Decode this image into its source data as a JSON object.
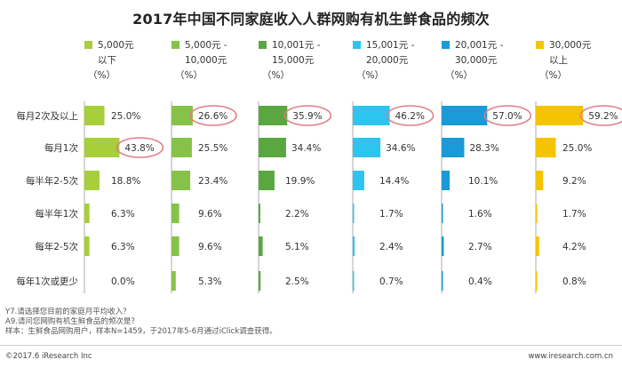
{
  "chart_data": {
    "type": "bar",
    "title": "2017年中国不同家庭收入人群网购有机生鲜食品的频次",
    "unit_label": "（%）",
    "categories": [
      "每月2次及以上",
      "每月1次",
      "每半年2-5次",
      "每半年1次",
      "每年2-5次",
      "每年1次或更少"
    ],
    "series": [
      {
        "name": "5,000元以下",
        "name_lines": [
          "5,000元",
          "以下"
        ],
        "color": "#a6cf3b",
        "values": [
          25.0,
          43.8,
          18.8,
          6.3,
          6.3,
          0.0
        ],
        "labels": [
          "25.0%",
          "43.8%",
          "18.8%",
          "6.3%",
          "6.3%",
          "0.0%"
        ],
        "highlight_index": 1
      },
      {
        "name": "5,000元 - 10,000元",
        "name_lines": [
          "5,000元 -",
          "10,000元"
        ],
        "color": "#86c247",
        "values": [
          26.6,
          25.5,
          23.4,
          9.6,
          9.6,
          5.3
        ],
        "labels": [
          "26.6%",
          "25.5%",
          "23.4%",
          "9.6%",
          "9.6%",
          "5.3%"
        ],
        "highlight_index": 0
      },
      {
        "name": "10,001元 - 15,000元",
        "name_lines": [
          "10,001元 -",
          "15,000元"
        ],
        "color": "#5aa73f",
        "values": [
          35.9,
          34.4,
          19.9,
          2.2,
          5.1,
          2.5
        ],
        "labels": [
          "35.9%",
          "34.4%",
          "19.9%",
          "2.2%",
          "5.1%",
          "2.5%"
        ],
        "highlight_index": 0
      },
      {
        "name": "15,001元 - 20,000元",
        "name_lines": [
          "15,001元 -",
          "20,000元"
        ],
        "color": "#2ec4f0",
        "values": [
          46.2,
          34.6,
          14.4,
          1.7,
          2.4,
          0.7
        ],
        "labels": [
          "46.2%",
          "34.6%",
          "14.4%",
          "1.7%",
          "2.4%",
          "0.7%"
        ],
        "highlight_index": 0
      },
      {
        "name": "20,001元 - 30,000元",
        "name_lines": [
          "20,001元 -",
          "30,000元"
        ],
        "color": "#1a9ad6",
        "values": [
          57.0,
          28.3,
          10.1,
          1.6,
          2.7,
          0.4
        ],
        "labels": [
          "57.0%",
          "28.3%",
          "10.1%",
          "1.6%",
          "2.7%",
          "0.4%"
        ],
        "highlight_index": 0
      },
      {
        "name": "30,000元以上",
        "name_lines": [
          "30,000元",
          "以上"
        ],
        "color": "#f5c400",
        "values": [
          59.2,
          25.0,
          9.2,
          1.7,
          4.2,
          0.8
        ],
        "labels": [
          "59.2%",
          "25.0%",
          "9.2%",
          "1.7%",
          "4.2%",
          "0.8%"
        ],
        "highlight_index": 0
      }
    ],
    "highlight_color": "#e07b86",
    "grid": false,
    "legend_position": "top"
  },
  "footnotes": {
    "line1": "Y7.请选择您目前的家庭月平均收入？",
    "line2": "A9.请问您网购有机生鲜食品的频次是？",
    "line3": "样本：生鲜食品网购用户，样本N=1459，于2017年5-6月通过iClick调查获得。"
  },
  "footer": {
    "copyright": "©2017.6 iResearch Inc",
    "website": "www.iresearch.com.cn"
  }
}
